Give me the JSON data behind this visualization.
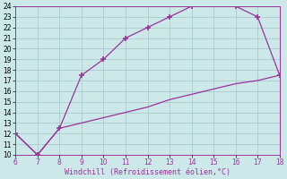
{
  "line1_x": [
    6,
    7,
    8,
    9,
    10,
    11,
    12,
    13,
    14,
    15,
    16,
    17,
    18
  ],
  "line1_y": [
    12,
    10,
    12.5,
    17.5,
    19,
    21,
    22,
    23,
    24,
    24.2,
    24,
    23,
    17.5
  ],
  "line2_x": [
    6,
    7,
    8,
    9,
    10,
    11,
    12,
    13,
    14,
    15,
    16,
    17,
    18
  ],
  "line2_y": [
    12,
    10,
    12.5,
    13.0,
    13.5,
    14.0,
    14.5,
    15.2,
    15.7,
    16.2,
    16.7,
    17.0,
    17.5
  ],
  "line_color": "#993399",
  "marker": "+",
  "marker_size": 5,
  "xlabel": "Windchill (Refroidissement éolien,°C)",
  "xlim": [
    6,
    18
  ],
  "ylim": [
    10,
    24
  ],
  "yticks": [
    10,
    11,
    12,
    13,
    14,
    15,
    16,
    17,
    18,
    19,
    20,
    21,
    22,
    23,
    24
  ],
  "xticks": [
    6,
    7,
    8,
    9,
    10,
    11,
    12,
    13,
    14,
    15,
    16,
    17,
    18
  ],
  "bg_color": "#cce8e8",
  "grid_color": "#aacccc",
  "tick_fontsize": 5.5,
  "xlabel_fontsize": 6.0
}
